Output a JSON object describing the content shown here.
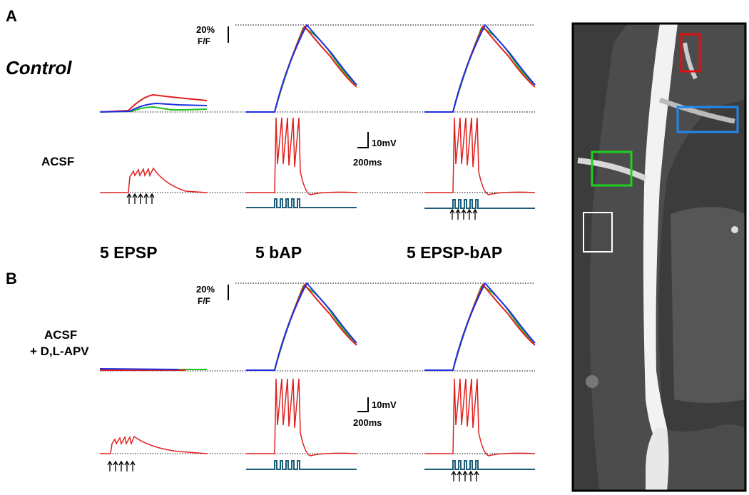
{
  "panel_a": {
    "label": "A",
    "condition": "Control",
    "fluor_scale": "20%",
    "fluor_unit": "F/F",
    "solution": "ACSF",
    "voltage_scale": "10mV",
    "time_scale": "200ms"
  },
  "protocols": [
    "5 EPSP",
    "5 bAP",
    "5 EPSP-bAP"
  ],
  "panel_b": {
    "label": "B",
    "fluor_scale": "20%",
    "fluor_unit": "F/F",
    "solution": "ACSF",
    "drug": "+ D,L-APV",
    "voltage_scale": "10mV",
    "time_scale": "200ms"
  }
}
